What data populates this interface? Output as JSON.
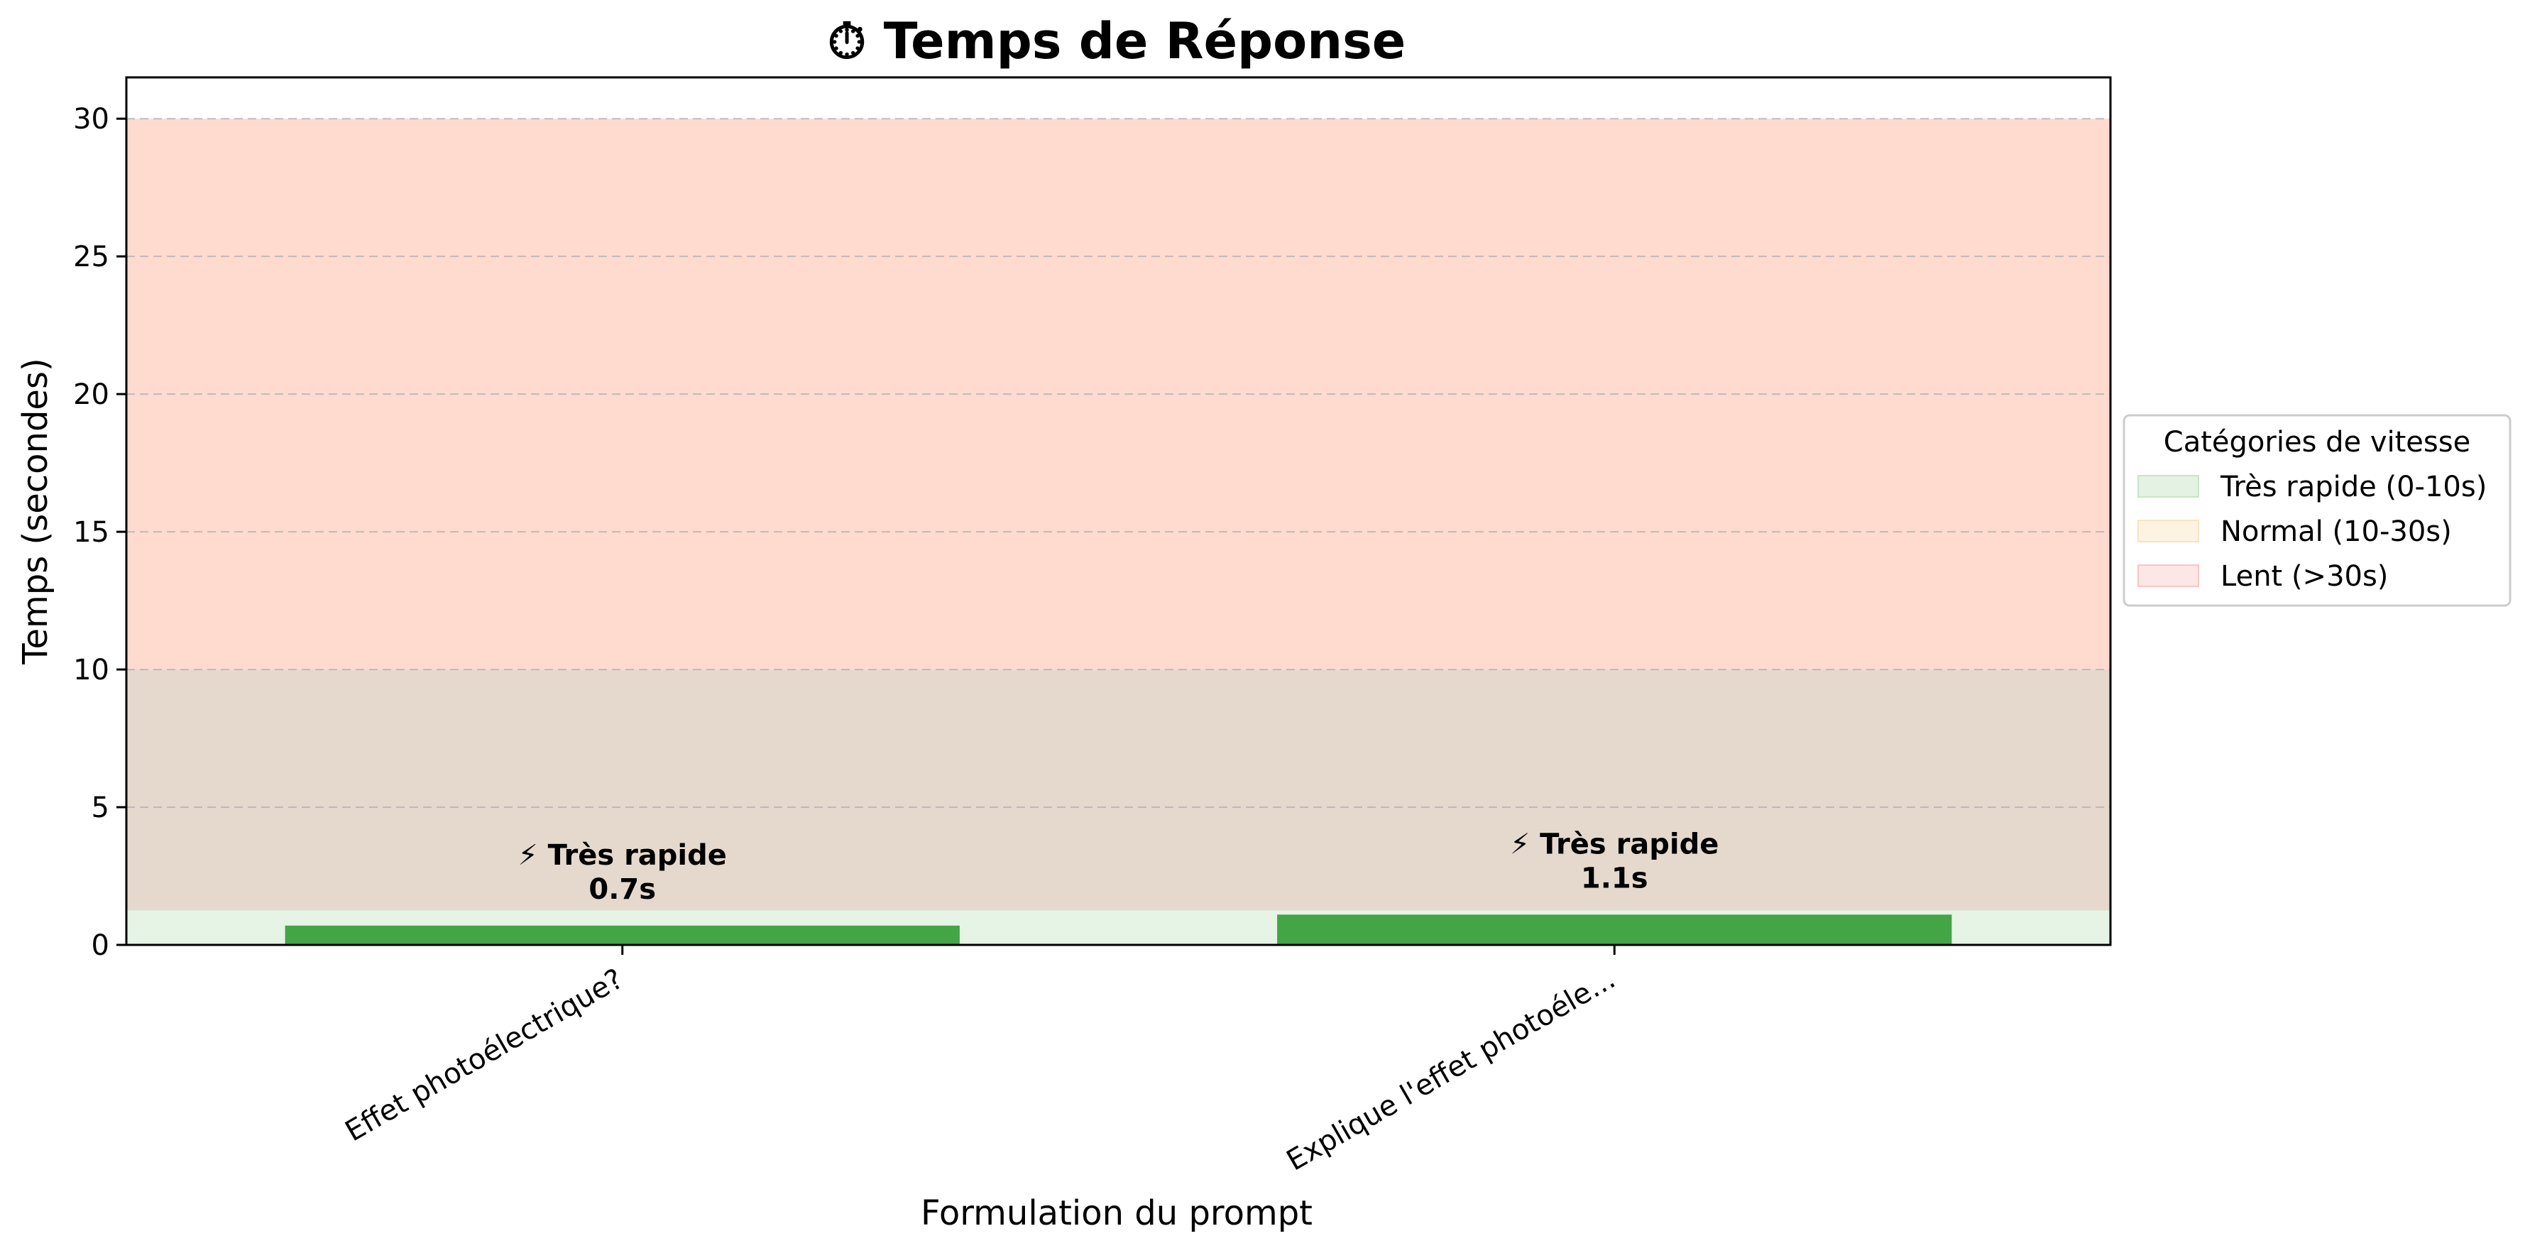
{
  "chart_data": {
    "type": "bar",
    "title": "⏱ Temps de Réponse",
    "title_icon": "stopwatch-icon",
    "xlabel": "Formulation du prompt",
    "ylabel": "Temps (secondes)",
    "ylim": [
      0,
      31.5
    ],
    "yticks": [
      0,
      5,
      10,
      15,
      20,
      25,
      30
    ],
    "grid": "y-dashed",
    "categories": [
      "Effet photoélectrique?",
      "Explique l'effet photoéle..."
    ],
    "values": [
      0.7,
      1.1
    ],
    "bar_labels": [
      {
        "category_label": "⚡ Très rapide",
        "value_label": "0.7s"
      },
      {
        "category_label": "⚡ Très rapide",
        "value_label": "1.1s"
      }
    ],
    "bar_color": "#43a546",
    "bands": [
      {
        "from": 0,
        "to": 10,
        "color": "#e6f4e6"
      },
      {
        "from": 1.25,
        "to": 10,
        "color": "#e5d9ce"
      },
      {
        "from": 10,
        "to": 30,
        "color": "#ffdbcf"
      }
    ],
    "legend": {
      "title": "Catégories de vitesse",
      "placement": "right",
      "entries": [
        {
          "label": "Très rapide (0-10s)",
          "color": "#e3f2e3",
          "edge": "#c6e5c6"
        },
        {
          "label": "Normal (10-30s)",
          "color": "#fdf3e3",
          "edge": "#f8e3c2"
        },
        {
          "label": "Lent (>30s)",
          "color": "#fde6e6",
          "edge": "#f8c6c6"
        }
      ]
    }
  }
}
